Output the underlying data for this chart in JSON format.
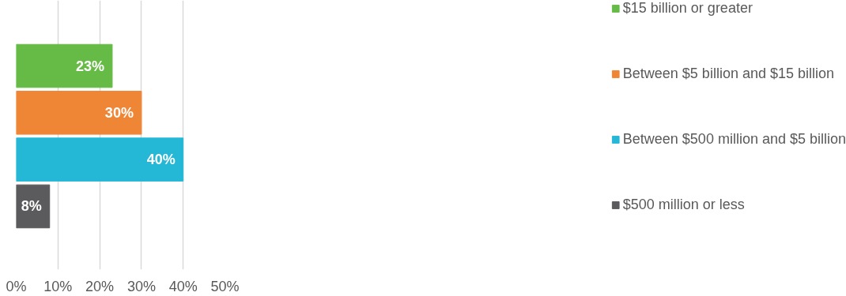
{
  "chart_data": {
    "type": "bar",
    "orientation": "horizontal",
    "categories": [
      null
    ],
    "series": [
      {
        "name": "$15 billion or greater",
        "color": "#66bb47",
        "values": [
          23
        ],
        "value_labels": [
          "23%"
        ]
      },
      {
        "name": "Between $5 billion and $15 billion",
        "color": "#ef8636",
        "values": [
          30
        ],
        "value_labels": [
          "30%"
        ]
      },
      {
        "name": "Between $500 million and $5 billion",
        "color": "#25b8d6",
        "values": [
          40
        ],
        "value_labels": [
          "40%"
        ]
      },
      {
        "name": "$500 million or less",
        "color": "#5b5b5d",
        "values": [
          8
        ],
        "value_labels": [
          "8%"
        ]
      }
    ],
    "xlim": [
      0,
      50
    ],
    "xticks": [
      {
        "value": 0,
        "label": "0%"
      },
      {
        "value": 10,
        "label": "10%"
      },
      {
        "value": 20,
        "label": "20%"
      },
      {
        "value": 30,
        "label": "30%"
      },
      {
        "value": 40,
        "label": "40%"
      },
      {
        "value": 50,
        "label": "50%"
      }
    ],
    "grid": "x",
    "legend": "right",
    "tick_labels": "x"
  }
}
